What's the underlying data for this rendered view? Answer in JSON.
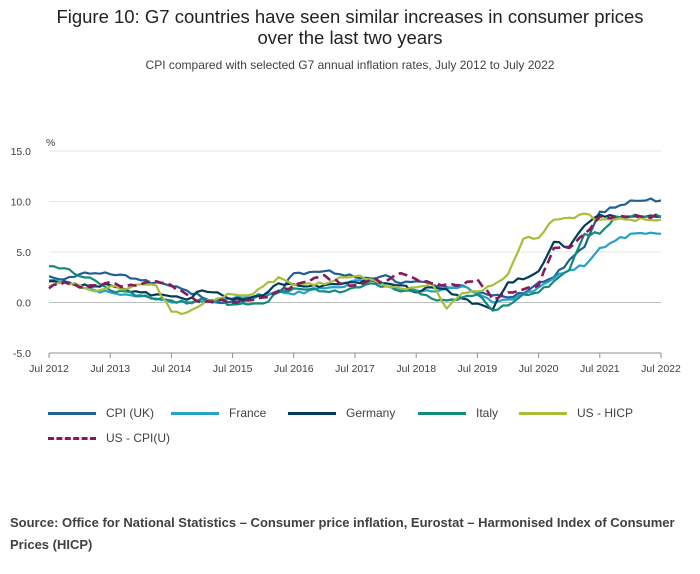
{
  "header": {
    "title_line1": "Figure 10: G7 countries have seen similar increases in consumer prices",
    "title_line2": "over the last two years",
    "subtitle": "CPI compared with selected G7 annual inflation rates, July 2012 to July 2022"
  },
  "source": "Source: Office for National Statistics – Consumer price inflation, Eurostat – Harmonised Index of Consumer Prices (HICP)",
  "chart_data": {
    "type": "line",
    "title": "Figure 10: G7 countries have seen similar increases in consumer prices over the last two years",
    "subtitle": "CPI compared with selected G7 annual inflation rates, July 2012 to July 2022",
    "ylabel": "%",
    "xlabel": "",
    "ylim": [
      -5,
      15
    ],
    "yticks": [
      "15.0",
      "10.0",
      "5.0",
      "0.0",
      "-5.0"
    ],
    "ytick_values": [
      15,
      10,
      5,
      0,
      -5
    ],
    "xticks": [
      "Jul 2012",
      "Jul 2013",
      "Jul 2014",
      "Jul 2015",
      "Jul 2016",
      "Jul 2017",
      "Jul 2018",
      "Jul 2019",
      "Jul 2020",
      "Jul 2021",
      "Jul 2022"
    ],
    "x_start": "Jul 2012",
    "x_end": "Jul 2022",
    "anchor_step_months": 3,
    "grid": "horizontal",
    "legend_position": "bottom",
    "series": [
      {
        "name": "CPI (UK)",
        "color": "#206095",
        "dash": "solid",
        "anchors": [
          2.6,
          2.3,
          2.8,
          2.9,
          2.8,
          2.7,
          2.2,
          2.0,
          1.6,
          1.2,
          0.5,
          0.0,
          0.1,
          0.3,
          0.6,
          1.0,
          2.9,
          3.0,
          3.1,
          2.8,
          2.5,
          2.4,
          2.7,
          1.9,
          2.1,
          1.8,
          1.5,
          1.7,
          1.0,
          0.7,
          0.5,
          0.9,
          2.0,
          2.5,
          4.2,
          5.5,
          9.0,
          9.4,
          10.1
        ]
      },
      {
        "name": "France",
        "color": "#27a0cc",
        "dash": "solid",
        "anchors": [
          2.2,
          2.1,
          1.5,
          1.2,
          1.0,
          0.8,
          0.6,
          0.4,
          0.0,
          0.1,
          0.1,
          0.2,
          0.4,
          0.5,
          0.7,
          1.2,
          0.8,
          1.2,
          1.4,
          1.5,
          2.2,
          2.3,
          1.9,
          1.3,
          1.2,
          1.1,
          1.4,
          1.6,
          0.9,
          0.0,
          0.3,
          0.8,
          1.5,
          2.4,
          3.2,
          3.6,
          5.4,
          6.1,
          6.8
        ]
      },
      {
        "name": "Germany",
        "color": "#003c57",
        "dash": "solid",
        "anchors": [
          2.1,
          2.1,
          1.6,
          1.6,
          1.7,
          1.3,
          1.0,
          0.8,
          0.6,
          0.3,
          1.2,
          1.0,
          0.3,
          0.4,
          0.7,
          1.9,
          1.8,
          1.6,
          1.7,
          1.8,
          2.0,
          2.2,
          1.9,
          1.7,
          1.0,
          1.5,
          1.3,
          0.4,
          -0.1,
          -0.7,
          2.0,
          2.3,
          3.1,
          6.0,
          5.5,
          7.6,
          8.7,
          8.5
        ]
      },
      {
        "name": "Italy",
        "color": "#118c7b",
        "dash": "solid",
        "anchors": [
          3.6,
          3.4,
          2.6,
          2.2,
          1.2,
          1.1,
          0.7,
          0.3,
          0.2,
          -0.1,
          0.4,
          0.2,
          -0.2,
          -0.2,
          -0.1,
          1.0,
          1.4,
          1.3,
          1.1,
          1.0,
          1.5,
          1.9,
          1.6,
          1.1,
          1.1,
          0.4,
          0.2,
          0.5,
          0.8,
          -0.8,
          -0.3,
          0.8,
          1.0,
          2.1,
          3.2,
          6.8,
          6.8,
          8.5
        ]
      },
      {
        "name": "US - HICP",
        "color": "#a8bd3a",
        "dash": "solid",
        "anchors": [
          1.6,
          2.0,
          1.7,
          1.1,
          1.6,
          1.3,
          1.8,
          1.7,
          -0.9,
          -1.0,
          -0.2,
          0.4,
          0.8,
          0.7,
          1.6,
          2.5,
          1.7,
          1.9,
          1.8,
          2.5,
          2.6,
          2.3,
          1.6,
          1.4,
          1.5,
          1.9,
          -0.6,
          0.9,
          1.1,
          1.7,
          2.8,
          6.3,
          6.4,
          8.2,
          8.4,
          8.8,
          8.2
        ]
      },
      {
        "name": "US - CPI(U)",
        "color": "#871a5b",
        "dash": "dashed",
        "anchors": [
          1.4,
          2.0,
          1.5,
          1.7,
          2.0,
          1.6,
          1.8,
          2.1,
          1.7,
          0.8,
          0.0,
          0.2,
          0.0,
          0.2,
          0.5,
          1.1,
          1.7,
          2.1,
          2.7,
          1.9,
          1.7,
          2.2,
          2.1,
          2.9,
          2.3,
          1.9,
          1.8,
          1.7,
          2.3,
          0.3,
          1.0,
          1.3,
          1.7,
          5.4,
          5.4,
          6.8,
          8.5,
          8.5
        ]
      }
    ]
  }
}
